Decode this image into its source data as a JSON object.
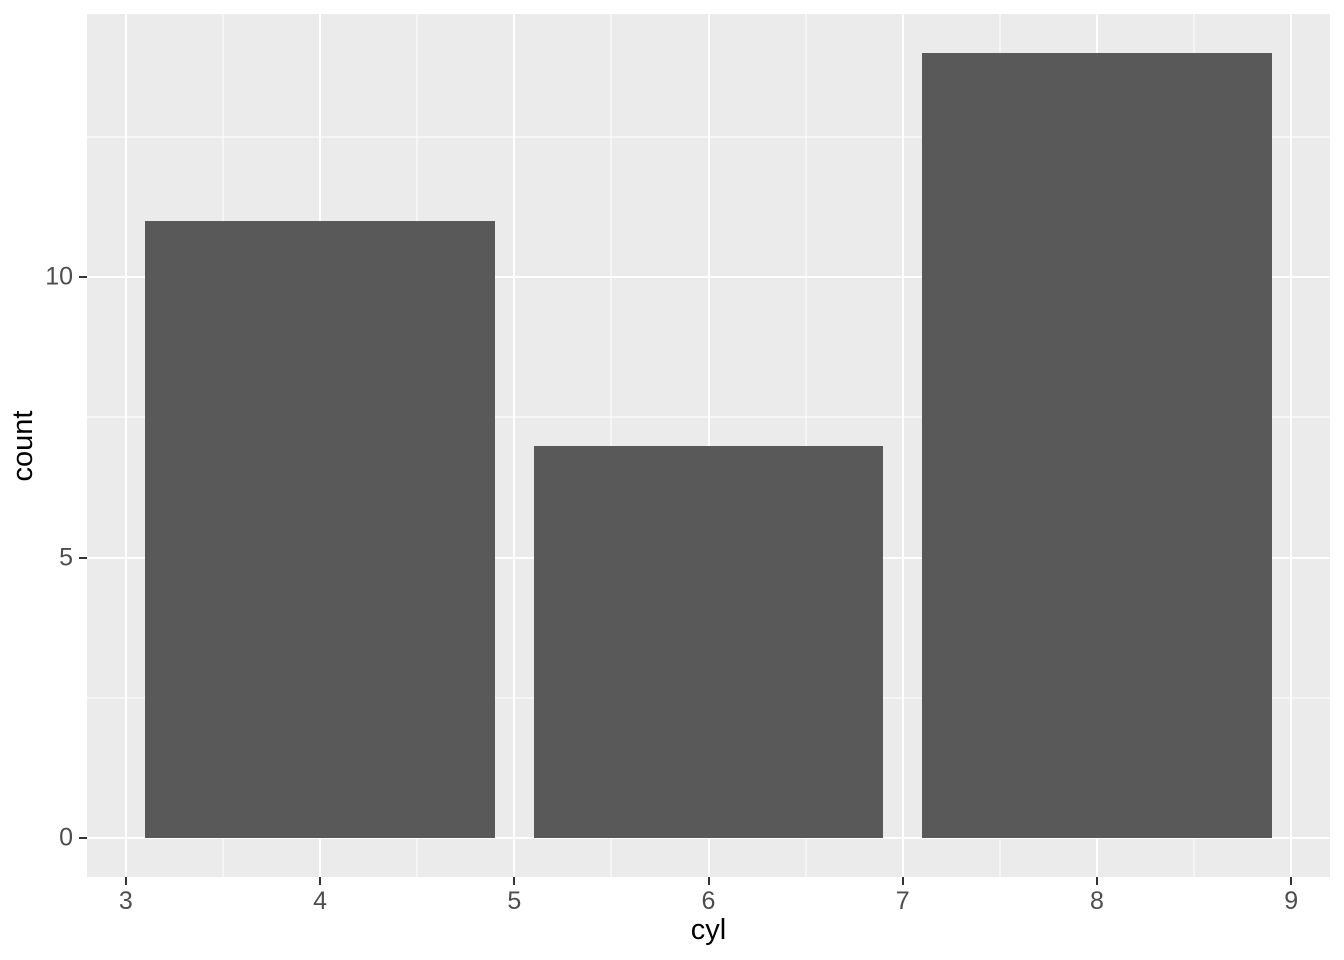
{
  "chart_data": {
    "type": "bar",
    "title": "",
    "xlabel": "cyl",
    "ylabel": "count",
    "categories": [
      4,
      6,
      8
    ],
    "values": [
      11,
      7,
      14
    ],
    "bar_width": 1.8,
    "xlim": [
      2.8,
      9.2
    ],
    "ylim": [
      -0.7,
      14.7
    ],
    "x_major_ticks": [
      3,
      4,
      5,
      6,
      7,
      8,
      9
    ],
    "x_minor_ticks": [
      3.5,
      4.5,
      5.5,
      6.5,
      7.5,
      8.5
    ],
    "y_major_ticks": [
      0,
      5,
      10
    ],
    "y_minor_ticks": [
      2.5,
      7.5,
      12.5
    ],
    "grid": true,
    "legend": "none",
    "colors": {
      "bar_fill": "#595959",
      "panel_bg": "#EBEBEB",
      "grid": "#FFFFFF",
      "tick_label": "#4D4D4D",
      "tick_mark": "#333333",
      "axis_title": "#000000",
      "background": "#FFFFFF"
    }
  }
}
